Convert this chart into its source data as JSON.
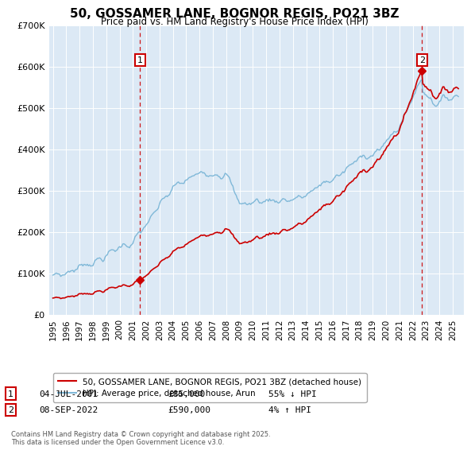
{
  "title": "50, GOSSAMER LANE, BOGNOR REGIS, PO21 3BZ",
  "subtitle": "Price paid vs. HM Land Registry's House Price Index (HPI)",
  "hpi_color": "#7fb8d8",
  "price_color": "#cc0000",
  "bg_color": "#dce9f5",
  "annotation1_date": "04-JUL-2001",
  "annotation1_price": 85000,
  "annotation1_label": "55% ↓ HPI",
  "annotation2_date": "08-SEP-2022",
  "annotation2_price": 590000,
  "annotation2_label": "4% ↑ HPI",
  "legend_label_price": "50, GOSSAMER LANE, BOGNOR REGIS, PO21 3BZ (detached house)",
  "legend_label_hpi": "HPI: Average price, detached house, Arun",
  "footnote": "Contains HM Land Registry data © Crown copyright and database right 2025.\nThis data is licensed under the Open Government Licence v3.0.",
  "ylim_min": 0,
  "ylim_max": 700000,
  "sale1_year": 2001.54,
  "sale2_year": 2022.69,
  "sale1_price": 85000,
  "sale2_price": 590000
}
